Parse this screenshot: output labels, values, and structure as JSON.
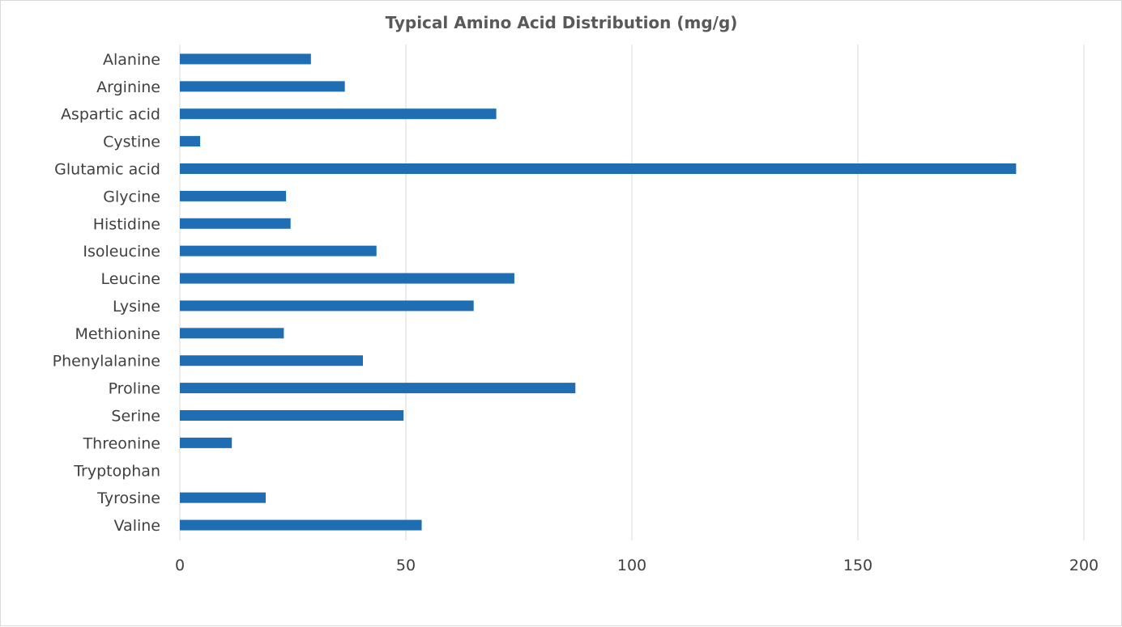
{
  "chart_data": {
    "type": "bar",
    "orientation": "horizontal",
    "title": "Typical Amino Acid Distribution (mg/g)",
    "xlabel": "",
    "ylabel": "",
    "categories": [
      "Alanine",
      "Arginine",
      "Aspartic acid",
      "Cystine",
      "Glutamic acid",
      "Glycine",
      "Histidine",
      "Isoleucine",
      "Leucine",
      "Lysine",
      "Methionine",
      "Phenylalanine",
      "Proline",
      "Serine",
      "Threonine",
      "Tryptophan",
      "Tyrosine",
      "Valine"
    ],
    "values": [
      29,
      36.5,
      70,
      4.5,
      185,
      23.5,
      24.5,
      43.5,
      74,
      65,
      23,
      40.5,
      87.5,
      49.5,
      11.5,
      0,
      19,
      53.5
    ],
    "xlim": [
      0,
      200
    ],
    "xticks": [
      "0",
      "50",
      "100",
      "150",
      "200"
    ],
    "grid": "vertical",
    "legend": "none",
    "bar_color": "#1f6eb4"
  }
}
